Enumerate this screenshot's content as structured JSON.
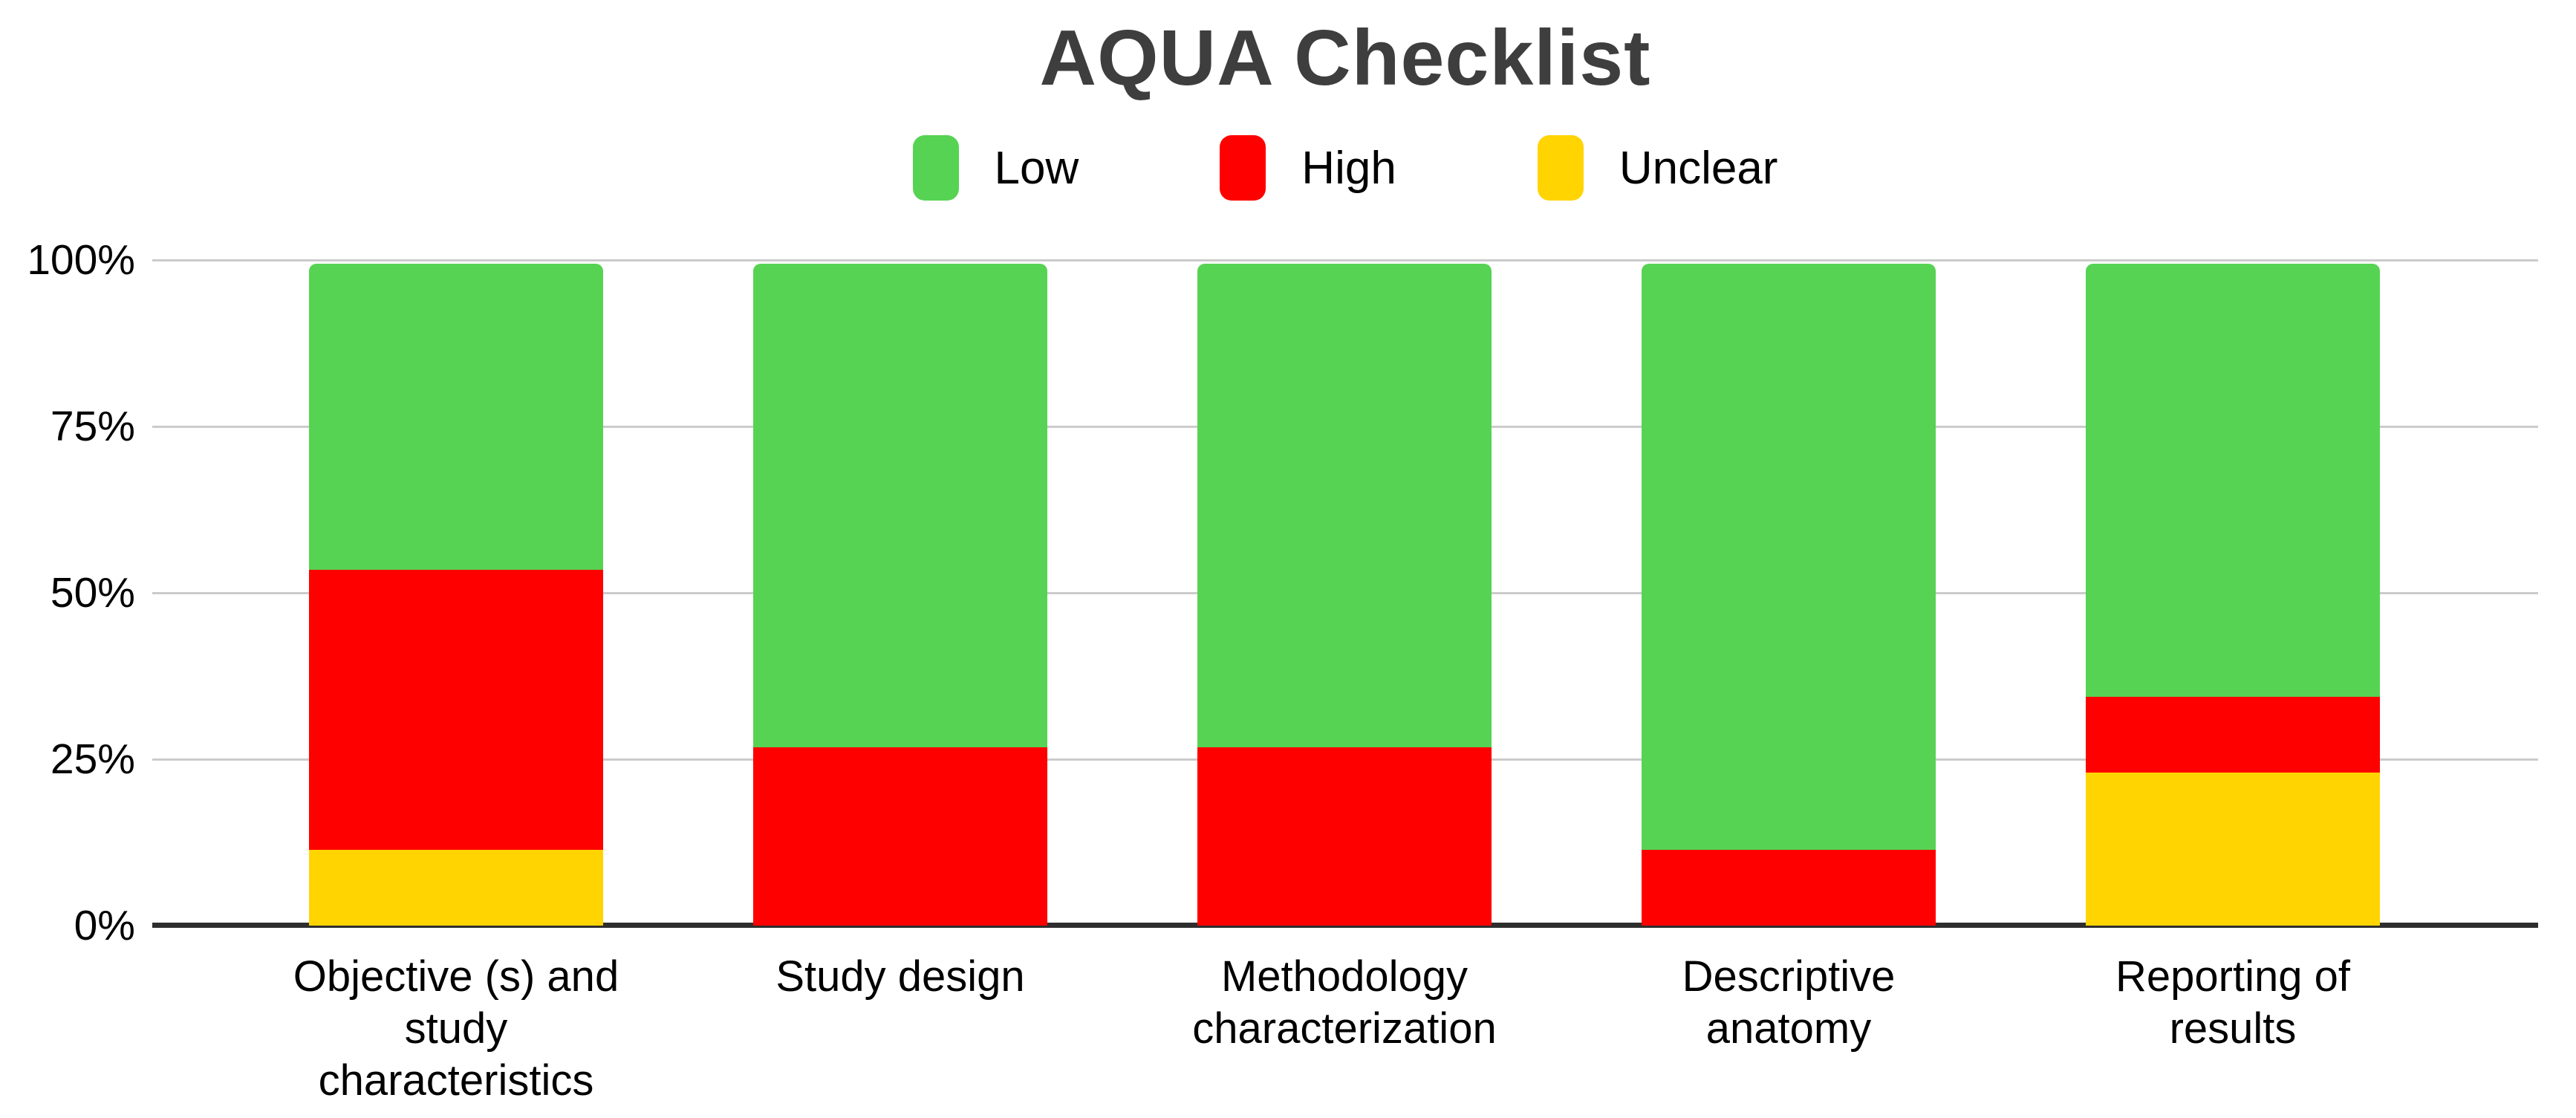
{
  "title": "AQUA Checklist",
  "colors": {
    "low": "#56d353",
    "high": "#ff0000",
    "unclear": "#ffd400",
    "title_text": "#3e3e3e",
    "axis_text": "#000000",
    "gridline": "#cbcbcb",
    "axis_line": "#2e2e2e",
    "background": "#ffffff"
  },
  "legend": {
    "position": "top",
    "items": [
      {
        "label": "Low",
        "color": "#56d353"
      },
      {
        "label": "High",
        "color": "#ff0000"
      },
      {
        "label": "Unclear",
        "color": "#ffd400"
      }
    ]
  },
  "y_axis": {
    "tick_labels": [
      "100%",
      "75%",
      "50%",
      "25%",
      "0%"
    ],
    "min": 0,
    "max": 100,
    "unit": "%"
  },
  "chart_data": {
    "type": "bar",
    "stacked": true,
    "title": "AQUA Checklist",
    "xlabel": "",
    "ylabel": "",
    "ylim": [
      0,
      100
    ],
    "grid": true,
    "legend_position": "top",
    "stack_order_bottom_to_top": [
      "Unclear",
      "High",
      "Low"
    ],
    "categories": [
      "Objective (s) and study characteristics",
      "Study design",
      "Methodology characterization",
      "Descriptive anatomy",
      "Reporting of results"
    ],
    "category_label_lines": [
      [
        "Objective (s) and",
        "study",
        "characteristics"
      ],
      [
        "Study design"
      ],
      [
        "Methodology",
        "characterization"
      ],
      [
        "Descriptive",
        "anatomy"
      ],
      [
        "Reporting of",
        "results"
      ]
    ],
    "series": [
      {
        "name": "Low",
        "color": "#56d353",
        "values": [
          46.2,
          73.1,
          73.1,
          88.5,
          65.4
        ]
      },
      {
        "name": "High",
        "color": "#ff0000",
        "values": [
          42.3,
          26.9,
          26.9,
          11.5,
          11.5
        ]
      },
      {
        "name": "Unclear",
        "color": "#ffd400",
        "values": [
          11.5,
          0.0,
          0.0,
          0.0,
          23.1
        ]
      }
    ]
  }
}
